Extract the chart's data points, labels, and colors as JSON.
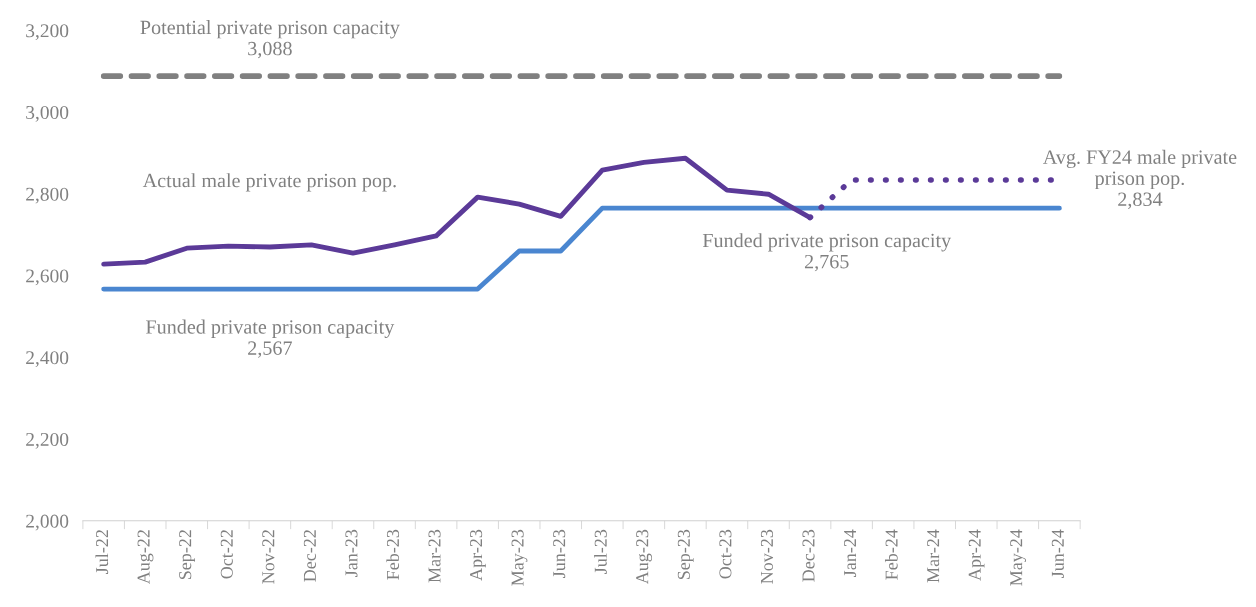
{
  "chart_data": {
    "type": "line",
    "categories": [
      "Jul-22",
      "Aug-22",
      "Sep-22",
      "Oct-22",
      "Nov-22",
      "Dec-22",
      "Jan-23",
      "Feb-23",
      "Mar-23",
      "Apr-23",
      "May-23",
      "Jun-23",
      "Jul-23",
      "Aug-23",
      "Sep-23",
      "Oct-23",
      "Nov-23",
      "Dec-23",
      "Jan-24",
      "Feb-24",
      "Mar-24",
      "Apr-24",
      "May-24",
      "Jun-24"
    ],
    "series": [
      {
        "color": "#808080",
        "line_style": "dashed",
        "values": [
          3088,
          3088,
          3088,
          3088,
          3088,
          3088,
          3088,
          3088,
          3088,
          3088,
          3088,
          3088,
          3088,
          3088,
          3088,
          3088,
          3088,
          3088,
          3088,
          3088,
          3088,
          3088,
          3088,
          3088
        ]
      },
      {
        "color": "#4a86d0",
        "line_style": "solid",
        "values": [
          2567,
          2567,
          2567,
          2567,
          2567,
          2567,
          2567,
          2567,
          2567,
          2567,
          2660,
          2660,
          2765,
          2765,
          2765,
          2765,
          2765,
          2765,
          2765,
          2765,
          2765,
          2765,
          2765,
          2765
        ]
      },
      {
        "color": "#5b3a98",
        "line_style": "solid",
        "values": [
          2628,
          2633,
          2667,
          2672,
          2670,
          2675,
          2655,
          2675,
          2697,
          2792,
          2775,
          2745,
          2858,
          2877,
          2887,
          2809,
          2799,
          2742,
          null,
          null,
          null,
          null,
          null,
          null
        ]
      },
      {
        "color": "#5b3a98",
        "line_style": "dotted",
        "values": [
          null,
          null,
          null,
          null,
          null,
          null,
          null,
          null,
          null,
          null,
          null,
          null,
          null,
          null,
          null,
          null,
          null,
          2742,
          2834,
          2834,
          2834,
          2834,
          2834,
          2834
        ]
      }
    ],
    "ylim": [
      2000,
      3200
    ],
    "yticks": [
      {
        "value": 2000,
        "label": "2,000"
      },
      {
        "value": 2200,
        "label": "2,200"
      },
      {
        "value": 2400,
        "label": "2,400"
      },
      {
        "value": 2600,
        "label": "2,600"
      },
      {
        "value": 2800,
        "label": "2,800"
      },
      {
        "value": 3000,
        "label": "3,000"
      },
      {
        "value": 3200,
        "label": "3,200"
      }
    ],
    "grid": false,
    "marker": "none",
    "annotations": [
      {
        "text": "Potential private prison capacity\n3,088",
        "x": "Nov-22",
        "y": 3088
      },
      {
        "text": "Actual male private prison pop.",
        "x": "Nov-22",
        "y": 2670
      },
      {
        "text": "Funded private prison capacity\n2,567",
        "x": "Nov-22",
        "y": 2567
      },
      {
        "text": "Funded private prison capacity\n2,765",
        "x": "Dec-23",
        "y": 2765
      },
      {
        "text": "Avg. FY24 male private\nprison pop.\n2,834",
        "x": "Jun-24",
        "y": 2834
      }
    ]
  }
}
